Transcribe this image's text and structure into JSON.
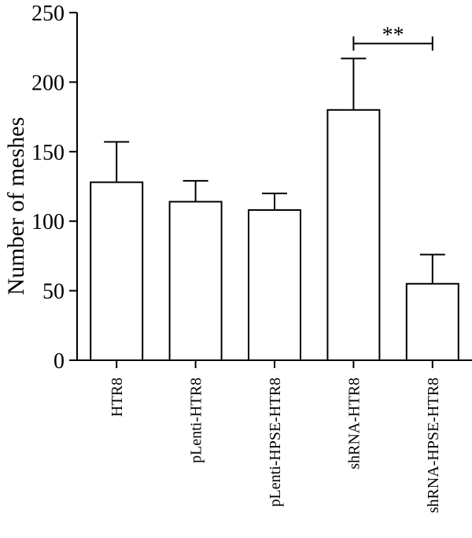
{
  "chart_data": {
    "type": "bar",
    "title": "",
    "xlabel": "",
    "ylabel": "Number of meshes",
    "ylim": [
      0,
      250
    ],
    "yticks": [
      0,
      50,
      100,
      150,
      200,
      250
    ],
    "grid": false,
    "categories": [
      "HTR8",
      "pLenti-HTR8",
      "pLenti-HPSE-HTR8",
      "shRNA-HTR8",
      "shRNA-HPSE-HTR8"
    ],
    "values": [
      128,
      114,
      108,
      180,
      55
    ],
    "error_upper": [
      29,
      15,
      12,
      37,
      21
    ],
    "annotations": [
      {
        "text": "**",
        "from_category": "shRNA-HTR8",
        "to_category": "shRNA-HPSE-HTR8",
        "y": 230
      }
    ],
    "colors": {
      "bar_fill": "#ffffff",
      "stroke": "#000000"
    }
  }
}
